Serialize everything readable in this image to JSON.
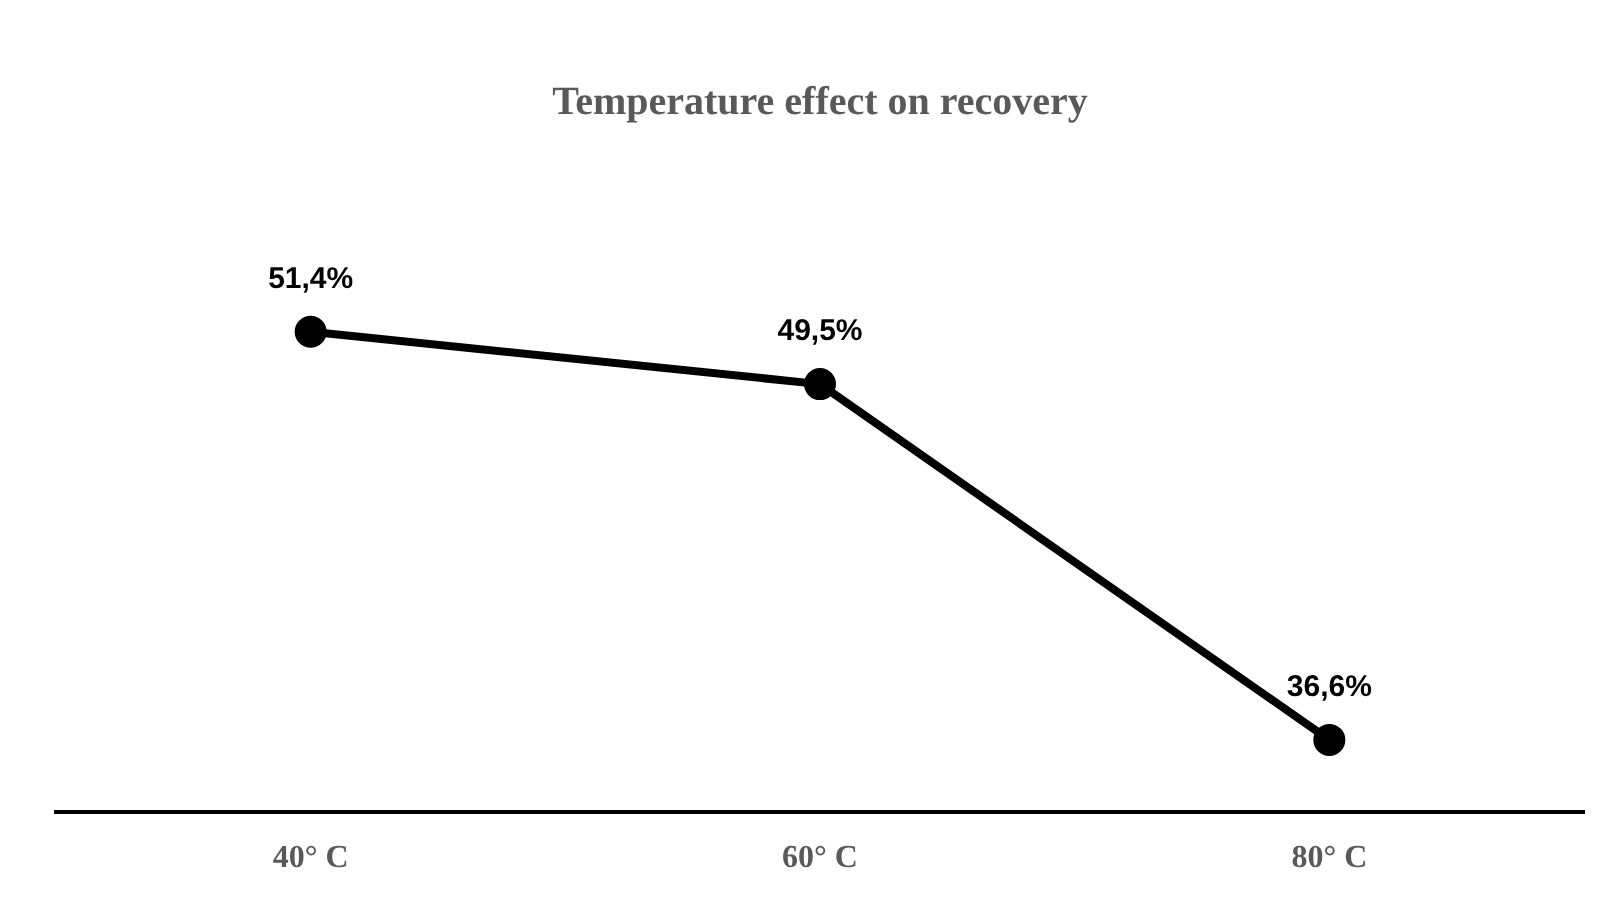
{
  "chart_data": {
    "type": "line",
    "title": "Temperature effect on recovery",
    "categories": [
      "40° C",
      "60° C",
      "80° C"
    ],
    "series": [
      {
        "color": "#000000",
        "values": [
          51.4,
          49.5,
          36.6
        ],
        "value_labels": [
          "51,4%",
          "49,5%",
          "36,6%"
        ]
      }
    ],
    "marker": "circle",
    "line_style": "solid",
    "grid": false,
    "legend": false
  }
}
